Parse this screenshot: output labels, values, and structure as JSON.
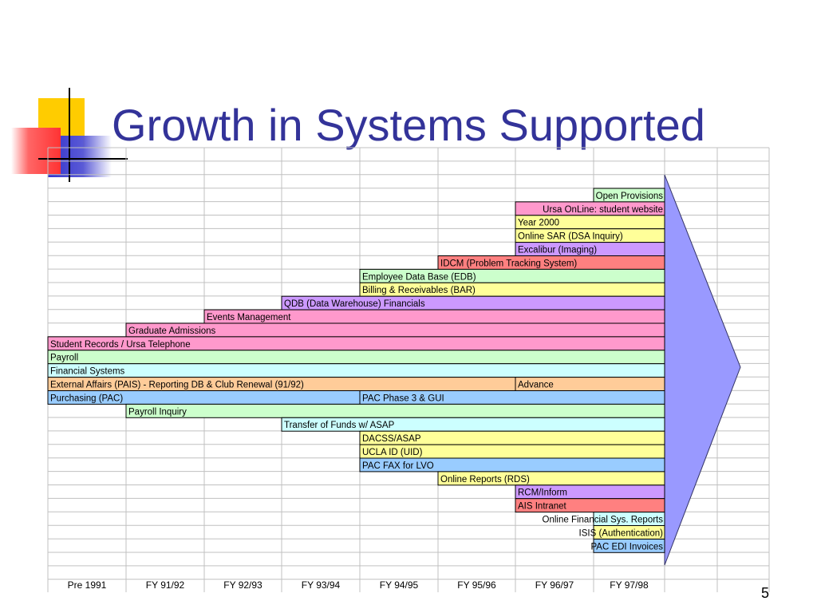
{
  "slide": {
    "title": "Growth in Systems Supported",
    "page_number": "5"
  },
  "colors": {
    "title": "#333399",
    "arrow_fill": "#9999ff",
    "grid_line": "#c0c0c0",
    "bar_outline": "#000000",
    "logo_yellow": "#ffcc00",
    "logo_blue": "#3333cc",
    "logo_red": "#ff3333"
  },
  "chart_data": {
    "type": "table",
    "x_axis_labels": [
      "Pre 1991",
      "FY 91/92",
      "FY 92/93",
      "FY 93/94",
      "FY 94/95",
      "FY 95/96",
      "FY 96/97",
      "FY 97/98"
    ],
    "growth_arrow": "right",
    "systems": [
      {
        "label": "Open Provisions",
        "start": "FY 97/98",
        "end": "FY 97/98",
        "color": "#ccffcc",
        "label_align": "right"
      },
      {
        "label": "Ursa OnLine: student website",
        "start": "FY 96/97",
        "end": "FY 97/98",
        "color": "#ff99cc",
        "label_align": "right"
      },
      {
        "label": "Year 2000",
        "start": "FY 96/97",
        "end": "FY 97/98",
        "color": "#ffff99"
      },
      {
        "label": "Online SAR (DSA Inquiry)",
        "start": "FY 96/97",
        "end": "FY 97/98",
        "color": "#ffff99"
      },
      {
        "label": "Excalibur (Imaging)",
        "start": "FY 96/97",
        "end": "FY 97/98",
        "color": "#cc99ff"
      },
      {
        "label": "IDCM (Problem Tracking System)",
        "start": "FY 95/96",
        "end": "FY 97/98",
        "color": "#ff8080"
      },
      {
        "label": "Employee Data Base (EDB)",
        "start": "FY 94/95",
        "end": "FY 97/98",
        "color": "#ccffcc"
      },
      {
        "label": "Billing & Receivables (BAR)",
        "start": "FY 94/95",
        "end": "FY 97/98",
        "color": "#ffff99"
      },
      {
        "label": "QDB (Data Warehouse) Financials",
        "start": "FY 93/94",
        "end": "FY 97/98",
        "color": "#cc99ff"
      },
      {
        "label": "Events Management",
        "start": "FY 92/93",
        "end": "FY 97/98",
        "color": "#ff99cc"
      },
      {
        "label": "Graduate Admissions",
        "start": "FY 91/92",
        "end": "FY 97/98",
        "color": "#ff99cc"
      },
      {
        "label": "Student Records / Ursa Telephone",
        "start": "Pre 1991",
        "end": "FY 97/98",
        "color": "#ff99cc"
      },
      {
        "label": "Payroll",
        "start": "Pre 1991",
        "end": "FY 97/98",
        "color": "#ccffcc"
      },
      {
        "label": "Financial Systems",
        "start": "Pre 1991",
        "end": "FY 97/98",
        "color": "#ccffff"
      },
      {
        "label": "External Affairs (PAIS) - Reporting DB & Club Renewal (91/92)",
        "start": "Pre 1991",
        "end": "FY 95/96",
        "color": "#ffcc99",
        "next": {
          "label": "Advance",
          "start": "FY 96/97",
          "end": "FY 97/98",
          "color": "#ffcc99"
        }
      },
      {
        "label": "Purchasing (PAC)",
        "start": "Pre 1991",
        "end": "FY 93/94",
        "color": "#99ccff",
        "next": {
          "label": "PAC Phase 3 & GUI",
          "start": "FY 94/95",
          "end": "FY 97/98",
          "color": "#99ccff"
        }
      },
      {
        "label": "Payroll Inquiry",
        "start": "FY 91/92",
        "end": "FY 97/98",
        "color": "#ccffcc"
      },
      {
        "label": "Transfer of Funds w/ ASAP",
        "start": "FY 93/94",
        "end": "FY 97/98",
        "color": "#ccffff"
      },
      {
        "label": "DACSS/ASAP",
        "start": "FY 94/95",
        "end": "FY 97/98",
        "color": "#ffff99"
      },
      {
        "label": "UCLA ID (UID)",
        "start": "FY 94/95",
        "end": "FY 97/98",
        "color": "#ffff99"
      },
      {
        "label": "PAC FAX for LVO",
        "start": "FY 94/95",
        "end": "FY 97/98",
        "color": "#99ccff"
      },
      {
        "label": "Online Reports (RDS)",
        "start": "FY 95/96",
        "end": "FY 97/98",
        "color": "#ffff99"
      },
      {
        "label": "RCM/Inform",
        "start": "FY 96/97",
        "end": "FY 97/98",
        "color": "#cc99ff"
      },
      {
        "label": "AIS Intranet",
        "start": "FY 96/97",
        "end": "FY 97/98",
        "color": "#ff8080"
      },
      {
        "label": "Online Financial Sys. Reports",
        "start": "FY 97/98",
        "end": "FY 97/98",
        "color": "#ccffff",
        "label_align": "right"
      },
      {
        "label": "ISIS (Authentication)",
        "start": "FY 97/98",
        "end": "FY 97/98",
        "color": "#ffff99",
        "label_align": "right"
      },
      {
        "label": "PAC EDI Invoices",
        "start": "FY 97/98",
        "end": "FY 97/98",
        "color": "#99ccff",
        "label_align": "right"
      }
    ]
  }
}
